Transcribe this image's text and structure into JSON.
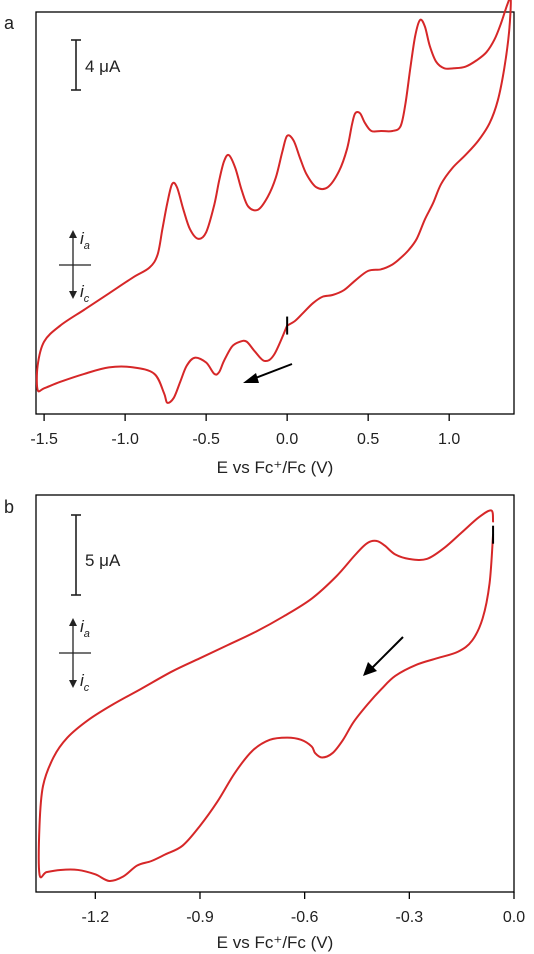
{
  "chart_data": [
    {
      "type": "line",
      "panel_label": "a",
      "xlabel": "E vs Fc⁺/Fc (V)",
      "ylabel": "",
      "xlim": [
        -1.55,
        1.4
      ],
      "ylim": [
        -11.5,
        13.5
      ],
      "grid": false,
      "xticks": [
        -1.5,
        -1.0,
        -0.5,
        0.0,
        0.5,
        1.0
      ],
      "xtick_labels": [
        "-1.5",
        "-1.0",
        "-0.5",
        "0.0",
        "0.5",
        "1.0"
      ],
      "scale_bar": {
        "label": "4 μA",
        "value": 4
      },
      "current_legend": {
        "anodic": "i",
        "anodic_sub": "a",
        "cathodic": "i",
        "cathodic_sub": "c"
      },
      "color": "#d62728",
      "start_marker_x": 0.0,
      "series": [
        {
          "x": [
            0.0,
            -0.08,
            -0.14,
            -0.2,
            -0.25,
            -0.29,
            -0.34,
            -0.39,
            -0.42,
            -0.45,
            -0.5,
            -0.57,
            -0.62,
            -0.66,
            -0.7,
            -0.74,
            -0.76,
            -0.82,
            -0.95,
            -1.1,
            -1.25,
            -1.4,
            -1.5,
            -1.54,
            -1.54,
            -1.5,
            -1.4,
            -1.25,
            -1.1,
            -0.95,
            -0.85,
            -0.8,
            -0.77,
            -0.74,
            -0.71,
            -0.68,
            -0.64,
            -0.6,
            -0.55,
            -0.5,
            -0.45,
            -0.42,
            -0.39,
            -0.36,
            -0.32,
            -0.28,
            -0.24,
            -0.18,
            -0.12,
            -0.07,
            -0.03,
            0.0,
            0.04,
            0.08,
            0.12,
            0.18,
            0.25,
            0.32,
            0.37,
            0.4,
            0.42,
            0.45,
            0.48,
            0.52,
            0.58,
            0.65,
            0.7,
            0.73,
            0.76,
            0.79,
            0.82,
            0.85,
            0.88,
            0.92,
            0.97,
            1.03,
            1.1,
            1.17,
            1.23,
            1.28,
            1.32,
            1.36,
            1.38,
            1.37,
            1.34,
            1.3,
            1.25,
            1.18,
            1.1,
            1.02,
            0.95,
            0.9,
            0.85,
            0.8,
            0.75,
            0.7,
            0.65,
            0.58,
            0.5,
            0.42,
            0.35,
            0.28,
            0.22,
            0.16,
            0.1,
            0.05,
            0.0
          ],
          "y": [
            -6.0,
            -7.8,
            -8.2,
            -7.6,
            -7.0,
            -7.0,
            -7.3,
            -8.2,
            -8.9,
            -9.0,
            -8.3,
            -8.0,
            -8.5,
            -9.5,
            -10.5,
            -10.8,
            -10.2,
            -9.0,
            -8.6,
            -8.6,
            -9.0,
            -9.5,
            -9.9,
            -10.0,
            -8.5,
            -7.0,
            -6.0,
            -5.0,
            -4.0,
            -3.0,
            -2.4,
            -1.6,
            0.0,
            1.6,
            2.8,
            2.6,
            1.2,
            0.0,
            -0.6,
            -0.2,
            1.5,
            3.0,
            4.2,
            4.6,
            3.8,
            2.4,
            1.4,
            1.2,
            2.0,
            3.2,
            4.8,
            5.8,
            5.5,
            4.4,
            3.4,
            2.6,
            2.6,
            3.6,
            5.0,
            6.5,
            7.2,
            7.2,
            6.6,
            6.1,
            6.1,
            6.1,
            6.4,
            7.8,
            10.0,
            12.0,
            13.0,
            12.6,
            11.4,
            10.4,
            10.0,
            10.0,
            10.1,
            10.5,
            11.0,
            11.8,
            12.8,
            14.0,
            14.3,
            12.3,
            10.0,
            8.0,
            6.6,
            5.5,
            4.6,
            3.8,
            2.8,
            1.6,
            0.6,
            -0.6,
            -1.3,
            -1.8,
            -2.2,
            -2.5,
            -2.6,
            -3.2,
            -3.8,
            -4.1,
            -4.2,
            -4.6,
            -5.2,
            -5.7,
            -6.0
          ]
        }
      ]
    },
    {
      "type": "line",
      "panel_label": "b",
      "xlabel": "E vs Fc⁺/Fc (V)",
      "ylabel": "",
      "xlim": [
        -1.37,
        0.0
      ],
      "ylim": [
        -14.0,
        4.0
      ],
      "grid": false,
      "xticks": [
        -1.2,
        -0.9,
        -0.6,
        -0.3,
        0.0
      ],
      "xtick_labels": [
        "-1.2",
        "-0.9",
        "-0.6",
        "-0.3",
        "0.0"
      ],
      "scale_bar": {
        "label": "5 μA",
        "value": 5
      },
      "current_legend": {
        "anodic": "i",
        "anodic_sub": "a",
        "cathodic": "i",
        "cathodic_sub": "c"
      },
      "color": "#d62728",
      "start_marker_x": -0.06,
      "series": [
        {
          "x": [
            -0.06,
            -0.07,
            -0.09,
            -0.12,
            -0.16,
            -0.22,
            -0.28,
            -0.34,
            -0.38,
            -0.42,
            -0.46,
            -0.49,
            -0.52,
            -0.55,
            -0.57,
            -0.58,
            -0.61,
            -0.65,
            -0.7,
            -0.75,
            -0.8,
            -0.85,
            -0.9,
            -0.95,
            -1.0,
            -1.04,
            -1.08,
            -1.12,
            -1.16,
            -1.2,
            -1.25,
            -1.3,
            -1.34,
            -1.36,
            -1.36,
            -1.35,
            -1.32,
            -1.28,
            -1.22,
            -1.15,
            -1.07,
            -0.98,
            -0.9,
            -0.82,
            -0.74,
            -0.66,
            -0.58,
            -0.51,
            -0.46,
            -0.43,
            -0.41,
            -0.39,
            -0.37,
            -0.34,
            -0.3,
            -0.25,
            -0.2,
            -0.15,
            -0.1,
            -0.065,
            -0.06
          ],
          "y": [
            2.2,
            0.0,
            -1.6,
            -2.6,
            -3.1,
            -3.4,
            -3.7,
            -4.2,
            -4.8,
            -5.5,
            -6.3,
            -7.1,
            -7.7,
            -7.9,
            -7.7,
            -7.4,
            -7.1,
            -7.0,
            -7.1,
            -7.6,
            -8.6,
            -9.9,
            -11.0,
            -11.9,
            -12.3,
            -12.6,
            -12.8,
            -13.3,
            -13.5,
            -13.2,
            -13.0,
            -13.0,
            -13.1,
            -13.2,
            -11.0,
            -9.2,
            -7.9,
            -7.0,
            -6.2,
            -5.5,
            -4.8,
            -4.0,
            -3.4,
            -2.8,
            -2.2,
            -1.5,
            -0.7,
            0.3,
            1.2,
            1.7,
            1.9,
            1.9,
            1.7,
            1.3,
            1.1,
            1.1,
            1.6,
            2.3,
            3.0,
            3.3,
            2.8
          ]
        }
      ]
    }
  ]
}
